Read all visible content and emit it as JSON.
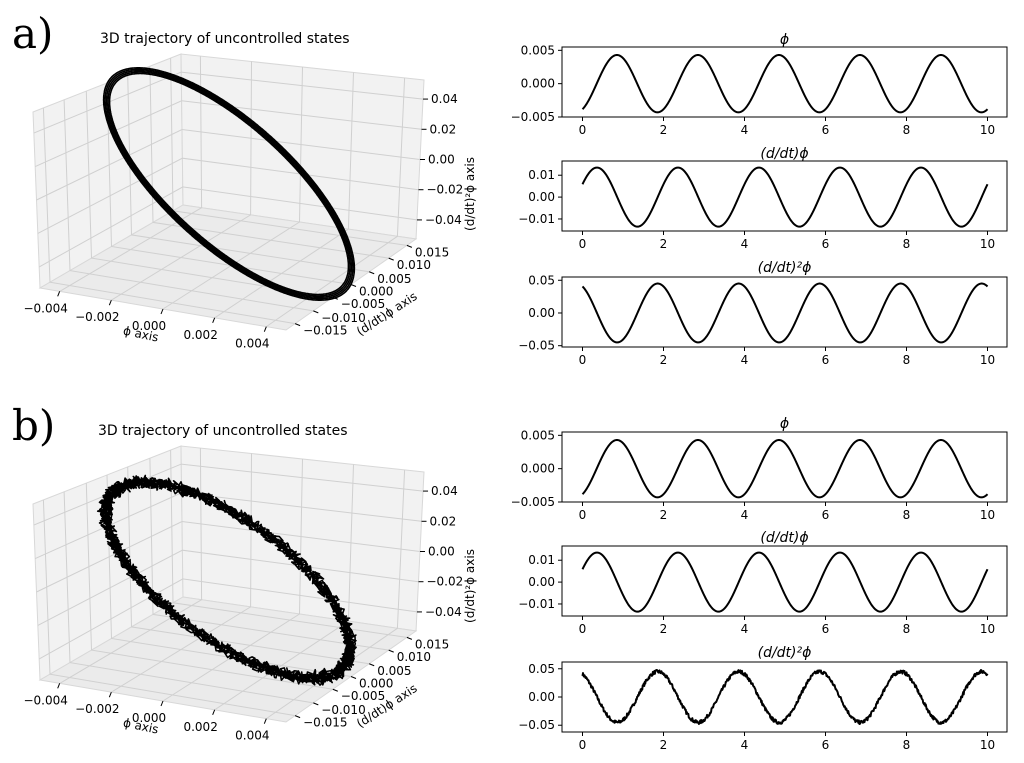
{
  "panels": [
    {
      "label": "a)",
      "trajectory": {
        "title": "3D trajectory of uncontrolled states",
        "x_label": "ϕ axis",
        "y_label": "(d/dt)ϕ axis",
        "z_label": "(d/dt)²ϕ axis",
        "x_ticks": [
          "−0.004",
          "−0.002",
          "0.000",
          "0.002",
          "0.004"
        ],
        "y_ticks": [
          "0.015",
          "0.010",
          "0.005",
          "0.000",
          "−0.005",
          "−0.010",
          "−0.015"
        ],
        "z_ticks": [
          "0.04",
          "0.02",
          "0.00",
          "−0.02",
          "−0.04"
        ],
        "noise": 0
      }
    },
    {
      "label": "b)",
      "trajectory": {
        "title": "3D trajectory of uncontrolled states",
        "x_label": "ϕ axis",
        "y_label": "(d/dt)ϕ axis",
        "z_label": "(d/dt)²ϕ axis",
        "x_ticks": [
          "−0.004",
          "−0.002",
          "0.000",
          "0.002",
          "0.004"
        ],
        "y_ticks": [
          "0.015",
          "0.010",
          "0.005",
          "0.000",
          "−0.005",
          "−0.010",
          "−0.015"
        ],
        "z_ticks": [
          "0.04",
          "0.02",
          "0.00",
          "−0.02",
          "−0.04"
        ],
        "noise": 1
      }
    }
  ],
  "chart_data": [
    {
      "type": "line",
      "panel": "a",
      "title": "ϕ",
      "x_range": [
        0,
        10
      ],
      "x_ticks": [
        "0",
        "2",
        "4",
        "6",
        "8",
        "10"
      ],
      "y_ticks": [
        "0.005",
        "0.000",
        "−0.005"
      ],
      "yticks_values": [
        0.005,
        0,
        -0.005
      ],
      "ylim": [
        -0.005,
        0.0055
      ],
      "amplitude": 0.0043,
      "period": 2,
      "phase": -1.1,
      "noise": 0
    },
    {
      "type": "line",
      "panel": "a",
      "title": "(d/dt)ϕ",
      "x_range": [
        0,
        10
      ],
      "x_ticks": [
        "0",
        "2",
        "4",
        "6",
        "8",
        "10"
      ],
      "y_ticks": [
        "0.01",
        "0.00",
        "−0.01"
      ],
      "yticks_values": [
        0.01,
        0,
        -0.01
      ],
      "ylim": [
        -0.0155,
        0.0165
      ],
      "amplitude": 0.0135,
      "period": 2,
      "phase": 0.45,
      "noise": 0
    },
    {
      "type": "line",
      "panel": "a",
      "title": "(d/dt)²ϕ",
      "x_range": [
        0,
        10
      ],
      "x_ticks": [
        "0",
        "2",
        "4",
        "6",
        "8",
        "10"
      ],
      "y_ticks": [
        "0.05",
        "0.00",
        "−0.05"
      ],
      "yticks_values": [
        0.05,
        0,
        -0.05
      ],
      "ylim": [
        -0.052,
        0.055
      ],
      "amplitude": 0.045,
      "period": 2,
      "phase": 2.02,
      "noise": 0
    },
    {
      "type": "line",
      "panel": "b",
      "title": "ϕ",
      "x_range": [
        0,
        10
      ],
      "x_ticks": [
        "0",
        "2",
        "4",
        "6",
        "8",
        "10"
      ],
      "y_ticks": [
        "0.005",
        "0.000",
        "−0.005"
      ],
      "yticks_values": [
        0.005,
        0,
        -0.005
      ],
      "ylim": [
        -0.005,
        0.0055
      ],
      "amplitude": 0.0043,
      "period": 2,
      "phase": -1.1,
      "noise": 0
    },
    {
      "type": "line",
      "panel": "b",
      "title": "(d/dt)ϕ",
      "x_range": [
        0,
        10
      ],
      "x_ticks": [
        "0",
        "2",
        "4",
        "6",
        "8",
        "10"
      ],
      "y_ticks": [
        "0.01",
        "0.00",
        "−0.01"
      ],
      "yticks_values": [
        0.01,
        0,
        -0.01
      ],
      "ylim": [
        -0.0155,
        0.0165
      ],
      "amplitude": 0.0135,
      "period": 2,
      "phase": 0.45,
      "noise": 0
    },
    {
      "type": "line",
      "panel": "b",
      "title": "(d/dt)²ϕ",
      "x_range": [
        0,
        10
      ],
      "x_ticks": [
        "0",
        "2",
        "4",
        "6",
        "8",
        "10"
      ],
      "y_ticks": [
        "0.05",
        "0.00",
        "−0.05"
      ],
      "yticks_values": [
        0.05,
        0,
        -0.05
      ],
      "ylim": [
        -0.062,
        0.062
      ],
      "amplitude": 0.045,
      "period": 2,
      "phase": 2.02,
      "noise": 0.004
    }
  ]
}
